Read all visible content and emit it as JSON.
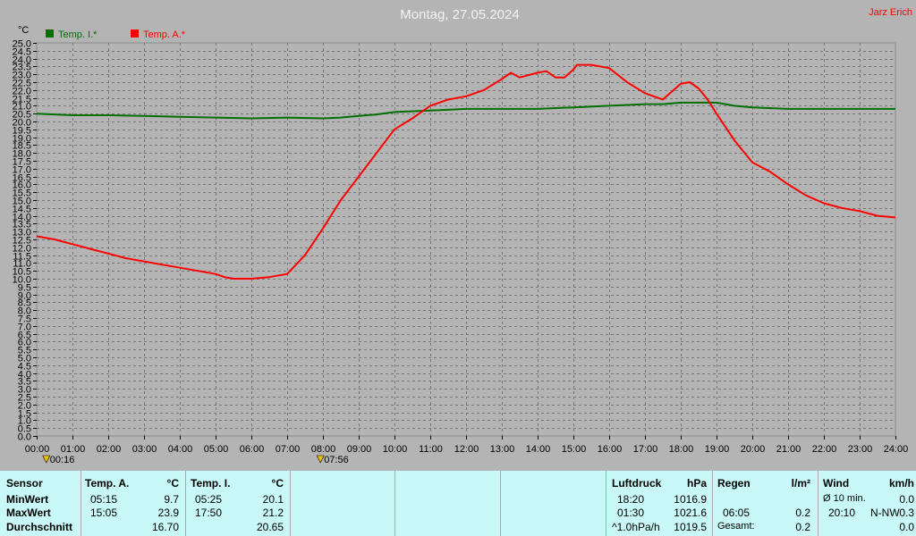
{
  "header": {
    "title": "Montag, 27.05.2024",
    "author": "Jarz Erich"
  },
  "chart_data": {
    "type": "line",
    "ylabel": "°C",
    "ylim": [
      0,
      25
    ],
    "y_ticks": [
      "0.0",
      "0.5",
      "1.0",
      "1.5",
      "2.0",
      "2.5",
      "3.0",
      "3.5",
      "4.0",
      "4.5",
      "5.0",
      "5.5",
      "6.0",
      "6.5",
      "7.0",
      "7.5",
      "8.0",
      "8.5",
      "9.0",
      "9.5",
      "10.0",
      "10.5",
      "11.0",
      "11.5",
      "12.0",
      "12.5",
      "13.0",
      "13.5",
      "14.0",
      "14.5",
      "15.0",
      "15.5",
      "16.0",
      "16.5",
      "17.0",
      "17.5",
      "18.0",
      "18.5",
      "19.0",
      "19.5",
      "20.0",
      "20.5",
      "21.0",
      "21.5",
      "22.0",
      "22.5",
      "23.0",
      "23.5",
      "24.0",
      "24.5",
      "25.0"
    ],
    "xlim": [
      0,
      24
    ],
    "x_ticks": [
      "00:00",
      "01:00",
      "02:00",
      "03:00",
      "04:00",
      "05:00",
      "06:00",
      "07:00",
      "08:00",
      "09:00",
      "10:00",
      "11:00",
      "12:00",
      "13:00",
      "14:00",
      "15:00",
      "16:00",
      "17:00",
      "18:00",
      "19:00",
      "20:00",
      "21:00",
      "22:00",
      "23:00",
      "24:00"
    ],
    "grid": true,
    "legend_position": "top-left",
    "sun_markers": [
      {
        "x": 0.27,
        "label": "00:16"
      },
      {
        "x": 7.93,
        "label": "07:56"
      }
    ],
    "series": [
      {
        "name": "Temp. I.*",
        "color": "#007000",
        "points": [
          [
            0,
            20.5
          ],
          [
            1,
            20.4
          ],
          [
            2,
            20.4
          ],
          [
            3,
            20.35
          ],
          [
            4,
            20.3
          ],
          [
            5,
            20.25
          ],
          [
            6,
            20.2
          ],
          [
            7,
            20.25
          ],
          [
            8,
            20.2
          ],
          [
            8.5,
            20.25
          ],
          [
            9,
            20.35
          ],
          [
            9.5,
            20.45
          ],
          [
            10,
            20.6
          ],
          [
            11,
            20.7
          ],
          [
            12,
            20.8
          ],
          [
            13,
            20.8
          ],
          [
            14,
            20.8
          ],
          [
            15,
            20.9
          ],
          [
            16,
            21.0
          ],
          [
            17,
            21.1
          ],
          [
            17.5,
            21.1
          ],
          [
            18,
            21.2
          ],
          [
            18.5,
            21.2
          ],
          [
            19,
            21.2
          ],
          [
            19.5,
            21.0
          ],
          [
            20,
            20.9
          ],
          [
            21,
            20.8
          ],
          [
            22,
            20.8
          ],
          [
            23,
            20.8
          ],
          [
            24,
            20.8
          ]
        ]
      },
      {
        "name": "Temp. A.*",
        "color": "#ff0000",
        "points": [
          [
            0,
            12.7
          ],
          [
            0.5,
            12.5
          ],
          [
            1,
            12.2
          ],
          [
            1.5,
            11.9
          ],
          [
            2,
            11.6
          ],
          [
            2.5,
            11.3
          ],
          [
            3,
            11.1
          ],
          [
            3.5,
            10.9
          ],
          [
            4,
            10.7
          ],
          [
            4.5,
            10.5
          ],
          [
            5,
            10.3
          ],
          [
            5.25,
            10.1
          ],
          [
            5.5,
            10.0
          ],
          [
            6,
            10.0
          ],
          [
            6.5,
            10.1
          ],
          [
            7,
            10.3
          ],
          [
            7.5,
            11.5
          ],
          [
            8,
            13.2
          ],
          [
            8.5,
            15.0
          ],
          [
            9,
            16.5
          ],
          [
            9.5,
            18.0
          ],
          [
            10,
            19.5
          ],
          [
            10.5,
            20.2
          ],
          [
            11,
            21.0
          ],
          [
            11.5,
            21.4
          ],
          [
            12,
            21.6
          ],
          [
            12.5,
            22.0
          ],
          [
            13,
            22.7
          ],
          [
            13.25,
            23.1
          ],
          [
            13.5,
            22.8
          ],
          [
            14,
            23.1
          ],
          [
            14.25,
            23.2
          ],
          [
            14.5,
            22.8
          ],
          [
            14.75,
            22.8
          ],
          [
            15,
            23.3
          ],
          [
            15.1,
            23.6
          ],
          [
            15.5,
            23.6
          ],
          [
            16,
            23.4
          ],
          [
            16.5,
            22.5
          ],
          [
            17,
            21.8
          ],
          [
            17.5,
            21.4
          ],
          [
            17.75,
            21.9
          ],
          [
            18,
            22.4
          ],
          [
            18.25,
            22.5
          ],
          [
            18.5,
            22.1
          ],
          [
            18.75,
            21.4
          ],
          [
            19,
            20.5
          ],
          [
            19.5,
            18.8
          ],
          [
            20,
            17.4
          ],
          [
            20.5,
            16.8
          ],
          [
            21,
            16.0
          ],
          [
            21.5,
            15.3
          ],
          [
            22,
            14.8
          ],
          [
            22.5,
            14.5
          ],
          [
            23,
            14.3
          ],
          [
            23.5,
            14.0
          ],
          [
            24,
            13.9
          ]
        ]
      }
    ]
  },
  "stats": {
    "sensor_col": {
      "header": "Sensor",
      "min": "MinWert",
      "max": "MaxWert",
      "avg": "Durchschnitt"
    },
    "temp_a": {
      "header": "Temp. A.",
      "unit": "°C",
      "min_time": "05:15",
      "min_val": "9.7",
      "max_time": "15:05",
      "max_val": "23.9",
      "avg_val": "16.70"
    },
    "temp_i": {
      "header": "Temp. I.",
      "unit": "°C",
      "min_time": "05:25",
      "min_val": "20.1",
      "max_time": "17:50",
      "max_val": "21.2",
      "avg_val": "20.65"
    },
    "pressure": {
      "header": "Luftdruck",
      "unit": "hPa",
      "min_time": "18:20",
      "min_val": "1016.9",
      "max_time": "01:30",
      "max_val": "1021.6",
      "trend_label": "^1.0hPa/h",
      "trend_val": "1019.5"
    },
    "rain": {
      "header": "Regen",
      "unit": "l/m²",
      "r2_time": "06:05",
      "r2_val": "0.2",
      "total_label": "Gesamt:",
      "total_val": "0.2"
    },
    "wind": {
      "header": "Wind",
      "unit": "km/h",
      "avg_label": "Ø 10 min.",
      "avg_val": "0.0",
      "max_time": "20:10",
      "max_dir": "N-NW",
      "max_val": "0.3",
      "last_val": "0.0"
    }
  }
}
